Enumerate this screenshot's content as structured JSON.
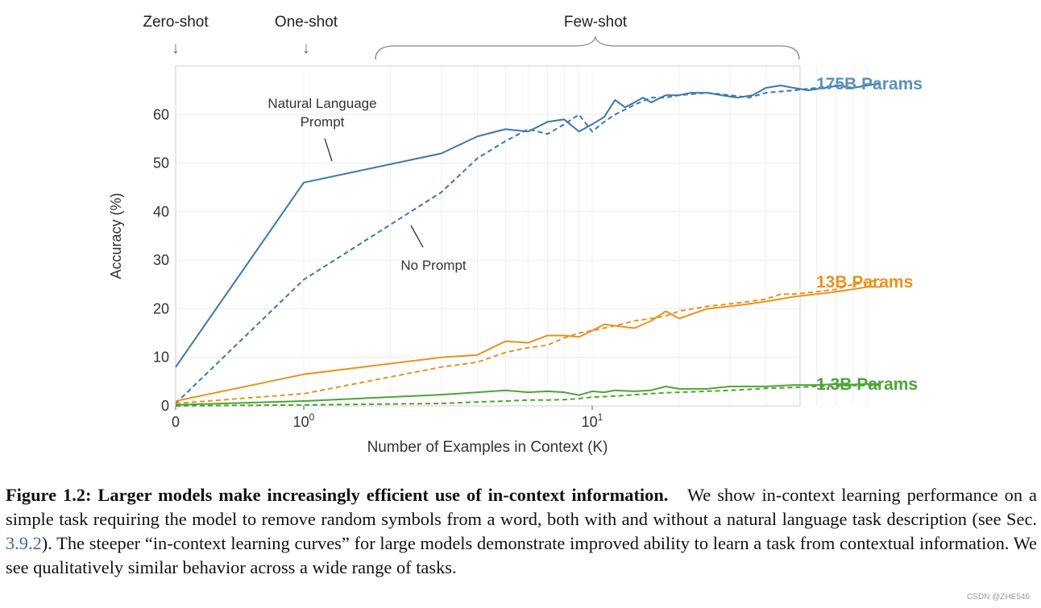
{
  "chart_data": {
    "type": "line",
    "xlabel": "Number of Examples in Context  (K)",
    "ylabel": "Accuracy (%)",
    "xscale": "symlog",
    "xticks": [
      {
        "value": 0,
        "label": "0"
      },
      {
        "value": 1,
        "label": "10",
        "sup": "0"
      },
      {
        "value": 10,
        "label": "10",
        "sup": "1"
      }
    ],
    "yticks": [
      0,
      10,
      20,
      30,
      40,
      50,
      60
    ],
    "xlim": [
      0,
      100
    ],
    "ylim": [
      0,
      70
    ],
    "grid": true,
    "regions": [
      {
        "label": "Zero-shot",
        "at": 0
      },
      {
        "label": "One-shot",
        "at": 1
      },
      {
        "label": "Few-shot",
        "from": 1.7,
        "to": 100
      }
    ],
    "annotations": {
      "natural_language_line1": "Natural Language",
      "natural_language_line2": "Prompt",
      "no_prompt": "No Prompt"
    },
    "model_labels": [
      {
        "text": "175B Params",
        "color": "#5b91bd"
      },
      {
        "text": "13B Params",
        "color": "#e8931e"
      },
      {
        "text": "1.3B Params",
        "color": "#4ea435"
      }
    ],
    "series": [
      {
        "name": "175B Natural Language Prompt",
        "model": "175B",
        "prompt": true,
        "color": "#3b77ac",
        "dash": "solid",
        "x": [
          0,
          1,
          3,
          4,
          5,
          6,
          7,
          8,
          9,
          10,
          11,
          12,
          13,
          14,
          15,
          16,
          18,
          20,
          22,
          25,
          28,
          32,
          36,
          40,
          45,
          50,
          56,
          64,
          72,
          80,
          90,
          100
        ],
        "y": [
          8,
          46,
          52,
          55.5,
          57,
          56.5,
          58.5,
          59,
          56.5,
          58,
          59.5,
          63,
          61.5,
          62.5,
          63.5,
          62.5,
          64,
          64,
          64.5,
          64.5,
          64,
          63.5,
          64,
          65.5,
          66,
          65.5,
          65,
          65.5,
          66,
          65.5,
          66,
          66.5
        ]
      },
      {
        "name": "175B No Prompt",
        "model": "175B",
        "prompt": false,
        "color": "#3b77ac",
        "dash": "dashed",
        "x": [
          0,
          1,
          3,
          4,
          5,
          6,
          7,
          8,
          9,
          10,
          11,
          12,
          14,
          16,
          18,
          20,
          25,
          30,
          35,
          40,
          50,
          60,
          70,
          80,
          90,
          100
        ],
        "y": [
          0.5,
          26,
          44,
          51,
          54.5,
          57,
          56,
          58,
          60,
          56.5,
          58.5,
          60,
          62,
          63.5,
          63.5,
          64,
          64.5,
          64,
          63.5,
          64.5,
          65,
          65.5,
          66,
          65.5,
          66,
          66.5
        ]
      },
      {
        "name": "13B Natural Language Prompt",
        "model": "13B",
        "prompt": true,
        "color": "#e8931e",
        "dash": "solid",
        "x": [
          0,
          1,
          3,
          4,
          5,
          6,
          7,
          8,
          9,
          10,
          11,
          12,
          14,
          16,
          18,
          20,
          25,
          30,
          35,
          40,
          45,
          50,
          60,
          70,
          80,
          90,
          100
        ],
        "y": [
          1,
          6.5,
          10,
          10.5,
          13.3,
          13,
          14.5,
          14.5,
          14.2,
          15.5,
          16.8,
          16.5,
          16,
          17.5,
          19.5,
          18,
          20,
          20.5,
          21,
          21.5,
          22,
          22.5,
          23,
          23.5,
          24,
          24.5,
          24.5
        ]
      },
      {
        "name": "13B No Prompt",
        "model": "13B",
        "prompt": false,
        "color": "#e8931e",
        "dash": "dashed",
        "x": [
          0,
          1,
          3,
          4,
          5,
          6,
          7,
          8,
          9,
          10,
          12,
          14,
          16,
          18,
          20,
          25,
          30,
          35,
          40,
          45,
          50,
          60,
          70,
          80,
          90,
          100
        ],
        "y": [
          0.5,
          2.5,
          8,
          9,
          11,
          12,
          12.5,
          14,
          15,
          15.5,
          16.5,
          17.5,
          18,
          18.5,
          19.5,
          20.5,
          21,
          21.5,
          22,
          23,
          23,
          23.5,
          24,
          25,
          25.5,
          26
        ]
      },
      {
        "name": "1.3B Natural Language Prompt",
        "model": "1.3B",
        "prompt": true,
        "color": "#4ea435",
        "dash": "solid",
        "x": [
          0,
          1,
          3,
          4,
          5,
          6,
          7,
          8,
          9,
          10,
          11,
          12,
          14,
          16,
          18,
          20,
          25,
          30,
          35,
          40,
          50,
          60,
          70,
          80,
          90,
          100
        ],
        "y": [
          0.2,
          1,
          2.3,
          2.8,
          3.2,
          2.8,
          3,
          2.8,
          2.2,
          3,
          2.8,
          3.2,
          3,
          3.2,
          4,
          3.5,
          3.5,
          4,
          4,
          4,
          4.3,
          4.3,
          4.5,
          4.4,
          4.5,
          4.5
        ]
      },
      {
        "name": "1.3B No Prompt",
        "model": "1.3B",
        "prompt": false,
        "color": "#4ea435",
        "dash": "dashed",
        "x": [
          0,
          1,
          3,
          4,
          5,
          6,
          7,
          8,
          9,
          10,
          12,
          14,
          16,
          18,
          20,
          25,
          30,
          35,
          40,
          50,
          60,
          70,
          80,
          90,
          100
        ],
        "y": [
          0,
          0.2,
          0.5,
          0.8,
          1,
          1.2,
          1.2,
          1.3,
          1.5,
          1.8,
          2,
          2.3,
          2.5,
          2.7,
          2.8,
          3,
          3.2,
          3.4,
          3.6,
          3.8,
          4,
          4.1,
          4.2,
          4.2,
          4.3
        ]
      }
    ]
  },
  "caption": {
    "heading": "Figure 1.2: Larger models make increasingly efficient use of in-context information.",
    "text_before_ref": "We show in-context learning performance on a simple task requiring the model to remove random symbols from a word, both with and without a natural language task description (see Sec. ",
    "ref": "3.9.2",
    "text_after_ref": "). The steeper “in-context learning curves” for large models demonstrate improved ability to learn a task from contextual information. We see qualitatively similar behavior across a wide range of tasks."
  },
  "watermark": "CSDN @ZHE546"
}
